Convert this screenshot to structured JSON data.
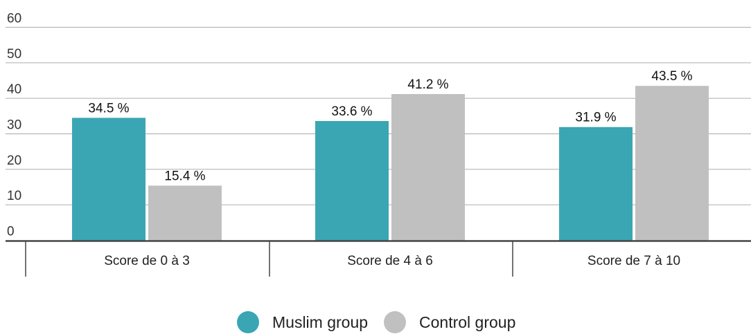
{
  "chart_data": {
    "type": "bar",
    "title": "",
    "xlabel": "",
    "ylabel": "",
    "ylim": [
      0,
      60
    ],
    "yticks": [
      0,
      10,
      20,
      30,
      40,
      50,
      60
    ],
    "grid": true,
    "legend_position": "bottom-center",
    "categories": [
      "Score de 0 à 3",
      "Score de 4 à 6",
      "Score de 7 à 10"
    ],
    "series": [
      {
        "name": "Muslim group",
        "color": "#3aa6b4",
        "values": [
          34.5,
          33.6,
          31.9
        ],
        "labels": [
          "34.5 %",
          "33.6 %",
          "31.9 %"
        ]
      },
      {
        "name": "Control group",
        "color": "#c0c0c0",
        "values": [
          15.4,
          41.2,
          43.5
        ],
        "labels": [
          "15.4 %",
          "41.2 %",
          "43.5 %"
        ]
      }
    ]
  }
}
